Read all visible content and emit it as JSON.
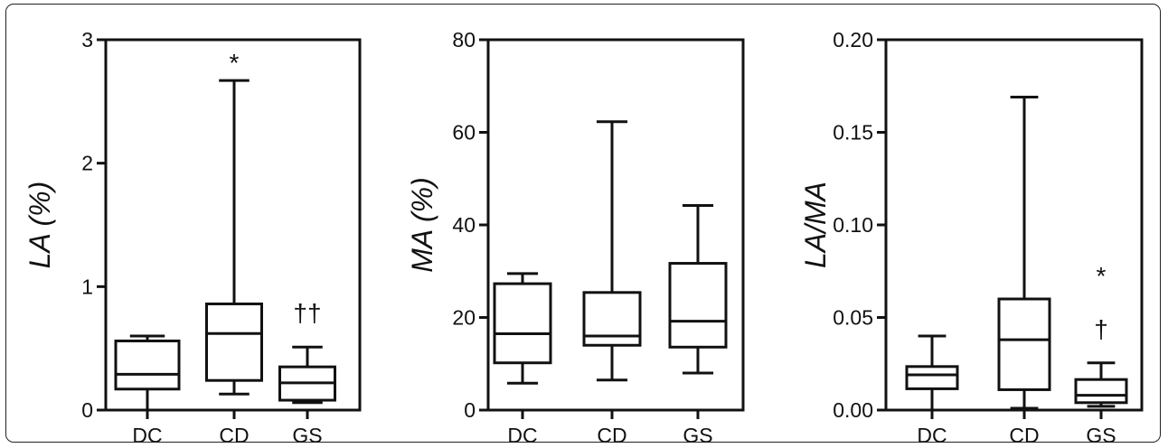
{
  "chart_data": [
    {
      "type": "box",
      "ylabel": "LA (%)",
      "ylim": [
        0,
        3
      ],
      "yticks": [
        0,
        1,
        2,
        3
      ],
      "categories": [
        "DC",
        "CD",
        "GS"
      ],
      "boxes": [
        {
          "min": 0.0,
          "q1": 0.17,
          "median": 0.29,
          "q3": 0.56,
          "max": 0.6
        },
        {
          "min": 0.13,
          "q1": 0.24,
          "median": 0.62,
          "q3": 0.86,
          "max": 2.67
        },
        {
          "min": 0.06,
          "q1": 0.08,
          "median": 0.22,
          "q3": 0.35,
          "max": 0.51
        }
      ],
      "annotations": [
        {
          "category": "CD",
          "text": "*"
        },
        {
          "category": "GS",
          "text": "††"
        }
      ]
    },
    {
      "type": "box",
      "ylabel": "MA (%)",
      "ylim": [
        0,
        80
      ],
      "yticks": [
        0,
        20,
        40,
        60,
        80
      ],
      "categories": [
        "DC",
        "CD",
        "GS"
      ],
      "boxes": [
        {
          "min": 5.8,
          "q1": 10.2,
          "median": 16.5,
          "q3": 27.3,
          "max": 29.5
        },
        {
          "min": 6.5,
          "q1": 14.0,
          "median": 16.0,
          "q3": 25.4,
          "max": 62.3
        },
        {
          "min": 8.0,
          "q1": 13.6,
          "median": 19.2,
          "q3": 31.7,
          "max": 44.2
        }
      ],
      "annotations": []
    },
    {
      "type": "box",
      "ylabel": "LA/MA",
      "ylim": [
        0,
        0.2
      ],
      "yticks": [
        "0.00",
        "0.05",
        "0.10",
        "0.15",
        "0.20"
      ],
      "categories": [
        "DC",
        "CD",
        "GS"
      ],
      "boxes": [
        {
          "min": 0.0,
          "q1": 0.0115,
          "median": 0.019,
          "q3": 0.0235,
          "max": 0.04
        },
        {
          "min": 0.001,
          "q1": 0.011,
          "median": 0.038,
          "q3": 0.06,
          "max": 0.169
        },
        {
          "min": 0.002,
          "q1": 0.004,
          "median": 0.008,
          "q3": 0.0165,
          "max": 0.0255
        }
      ],
      "annotations": [
        {
          "category": "GS",
          "text": "*"
        },
        {
          "category": "GS",
          "text": "†"
        }
      ]
    }
  ]
}
